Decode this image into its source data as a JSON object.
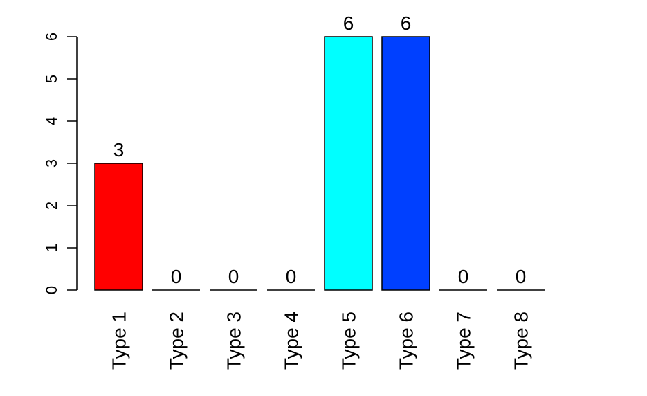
{
  "chart_data": {
    "type": "bar",
    "title": "",
    "xlabel": "",
    "ylabel": "",
    "categories": [
      "Type 1",
      "Type 2",
      "Type 3",
      "Type 4",
      "Type 5",
      "Type 6",
      "Type 7",
      "Type 8"
    ],
    "values": [
      3,
      0,
      0,
      0,
      6,
      6,
      0,
      0
    ],
    "data_labels": [
      "3",
      "0",
      "0",
      "0",
      "6",
      "6",
      "0",
      "0"
    ],
    "colors": [
      "#FF0000",
      "#FFFFFF",
      "#FFFFFF",
      "#FFFFFF",
      "#00FFFF",
      "#0040FF",
      "#FFFFFF",
      "#FFFFFF"
    ],
    "ylim": [
      0,
      6
    ],
    "yticks": [
      0,
      1,
      2,
      3,
      4,
      5,
      6
    ],
    "ytick_labels": [
      "0",
      "1",
      "2",
      "3",
      "4",
      "5",
      "6"
    ],
    "grid": false,
    "legend": "none",
    "x_label_orientation": "vertical",
    "y_label_orientation": "vertical"
  }
}
